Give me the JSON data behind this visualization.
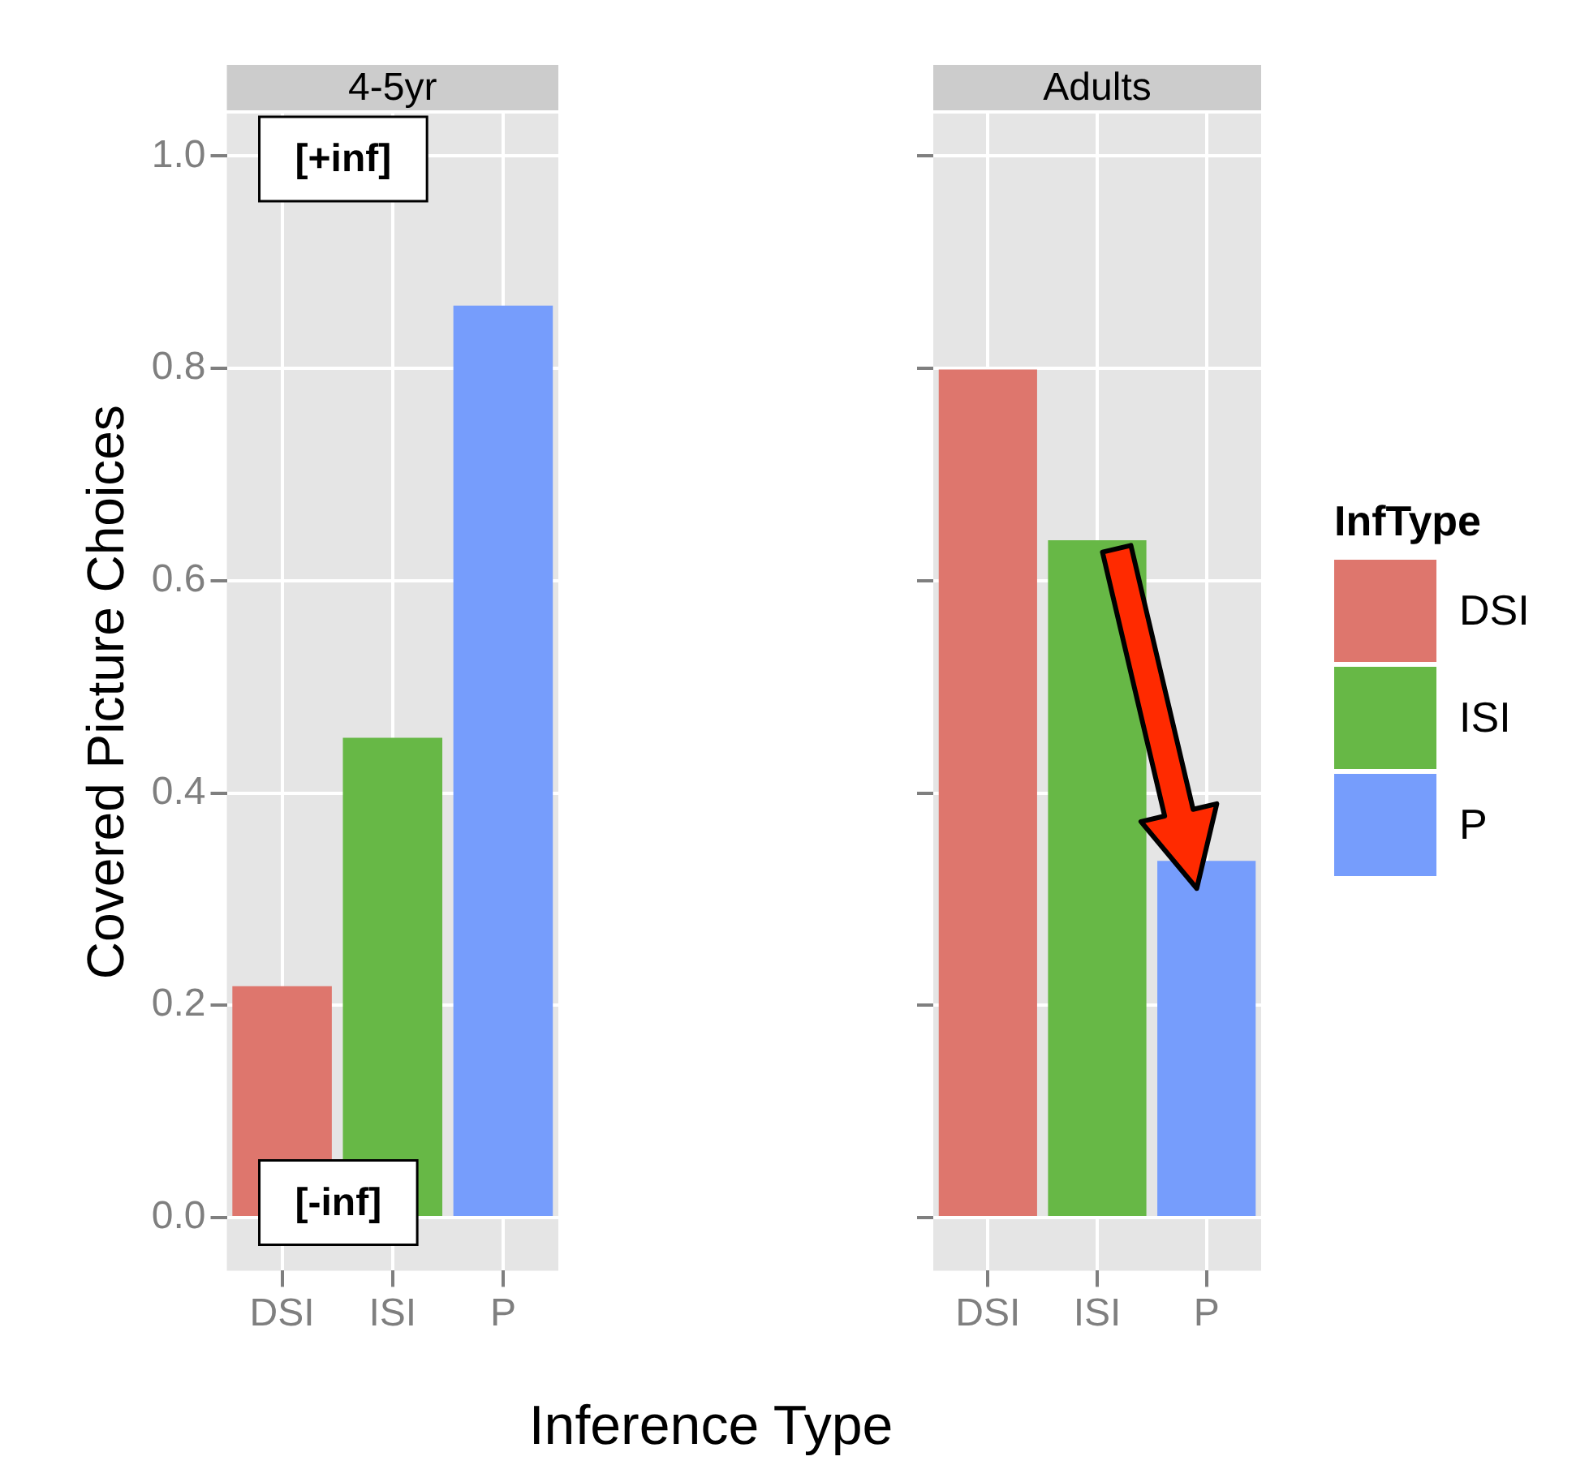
{
  "chart_data": [
    {
      "type": "bar",
      "title": "4-5yr",
      "xlabel": "Inference Type",
      "ylabel": "Covered Picture Choices",
      "categories": [
        "DSI",
        "ISI",
        "P"
      ],
      "series": [
        {
          "color": "#de766d",
          "values": [
            0.218,
            null,
            null
          ]
        },
        {
          "color": "#67b846",
          "values": [
            null,
            0.452,
            null
          ]
        },
        {
          "color": "#769dfc",
          "values": [
            null,
            null,
            0.859
          ]
        }
      ],
      "ylim": [
        -0.05,
        1.04
      ],
      "yticks": [
        {
          "value": 0,
          "label": "0.0"
        },
        0.2,
        0.4,
        0.6,
        0.8,
        {
          "value": 1,
          "label": "1.0"
        }
      ],
      "grid": true,
      "annotations": [
        "[+inf]",
        "[-inf]"
      ]
    },
    {
      "type": "bar",
      "title": "Adults",
      "categories": [
        "DSI",
        "ISI",
        "P"
      ],
      "series": [
        {
          "name": "DSI",
          "color": "#de766d",
          "values": [
            0.799,
            null,
            null
          ]
        },
        {
          "name": "ISI",
          "color": "#67b846",
          "values": [
            null,
            0.638,
            null
          ]
        },
        {
          "name": "P",
          "color": "#769dfc",
          "values": [
            null,
            null,
            0.336
          ]
        }
      ],
      "ylim": [
        -0.05,
        1.04
      ],
      "yticks": [
        0,
        0.2,
        0.4,
        0.6,
        0.8,
        1
      ],
      "grid": true,
      "tick_labels": "x",
      "legend": "right",
      "legend_title": "InfType"
    }
  ]
}
